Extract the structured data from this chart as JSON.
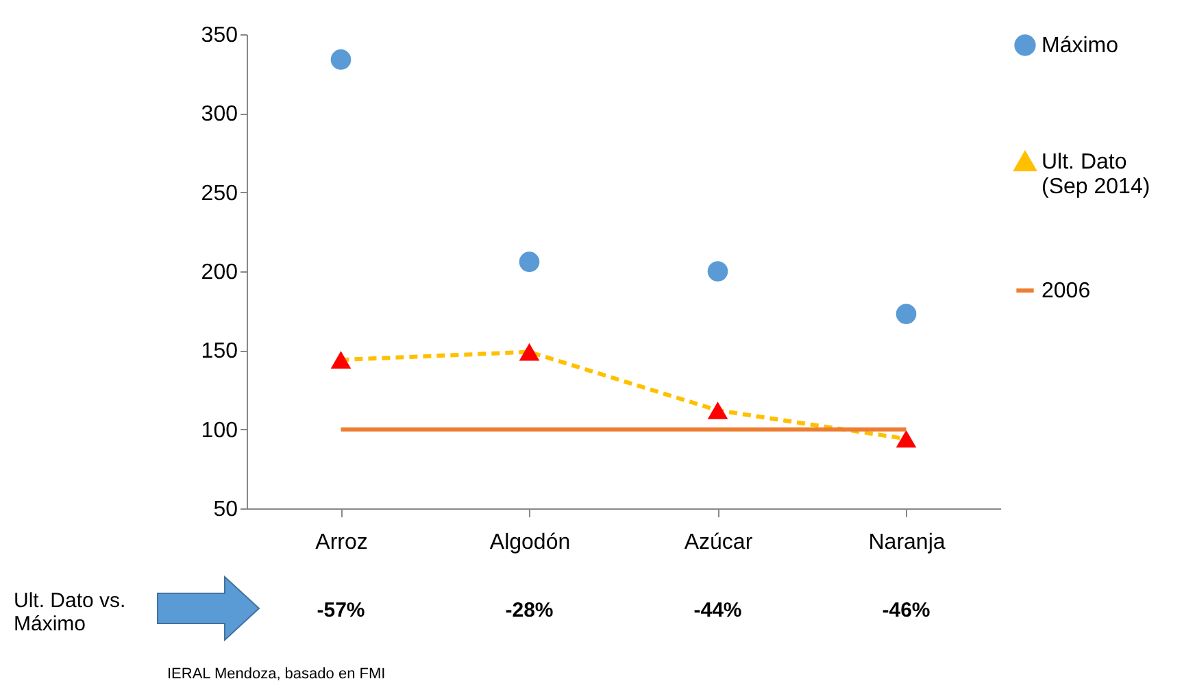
{
  "chart_data": {
    "type": "line",
    "categories": [
      "Arroz",
      "Algodón",
      "Azúcar",
      "Naranja"
    ],
    "series": [
      {
        "name": "Máximo",
        "type": "scatter",
        "color": "#5b9bd5",
        "marker": "circle",
        "values": [
          334,
          206,
          200,
          173
        ]
      },
      {
        "name": "Ult. Dato (Sep 2014)",
        "color": "#ffc000",
        "colors": [
          "#ff0000",
          "#ff0000",
          "#ff0000",
          "#ff0000"
        ],
        "marker": "triangle",
        "line_style": "dashed",
        "values": [
          144,
          149,
          112,
          94
        ]
      },
      {
        "name": "2006",
        "color": "#ed7d31",
        "marker": "none",
        "line_style": "solid",
        "values": [
          100,
          100,
          100,
          100
        ]
      }
    ],
    "ylim": [
      50,
      350
    ],
    "yticks": [
      50,
      100,
      150,
      200,
      250,
      300,
      350
    ],
    "grid": false,
    "legend": "right",
    "annotations": [
      "Ult. Dato vs. Máximo",
      "-57%",
      "-28%",
      "-44%",
      "-46%",
      "IERAL Mendoza, basado en FMI"
    ]
  }
}
